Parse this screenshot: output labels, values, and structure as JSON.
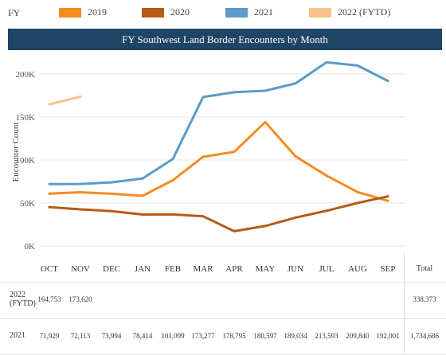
{
  "legend": {
    "label": "FY",
    "items": [
      {
        "name": "2019",
        "color": "#f58a21"
      },
      {
        "name": "2020",
        "color": "#b85a14"
      },
      {
        "name": "2021",
        "color": "#5b9bc8"
      },
      {
        "name": "2022 (FYTD)",
        "color": "#f7c38a"
      }
    ]
  },
  "chart_data": {
    "type": "line",
    "title": "FY Southwest Land Border Encounters by Month",
    "xlabel": "",
    "ylabel": "Encounter Count",
    "ylim": [
      0,
      230000
    ],
    "yticks": [
      0,
      50000,
      100000,
      150000,
      200000
    ],
    "ytick_labels": [
      "0K",
      "50K",
      "100K",
      "150K",
      "200K"
    ],
    "grid": "horizontal",
    "categories": [
      "OCT",
      "NOV",
      "DEC",
      "JAN",
      "FEB",
      "MAR",
      "APR",
      "MAY",
      "JUN",
      "JUL",
      "AUG",
      "SEP"
    ],
    "series": [
      {
        "name": "2019",
        "color": "#f58a21",
        "values": [
          60800,
          62500,
          60700,
          58300,
          76500,
          103700,
          109400,
          144100,
          104300,
          81800,
          62700,
          52500
        ]
      },
      {
        "name": "2020",
        "color": "#b85a14",
        "values": [
          45200,
          42600,
          40600,
          36600,
          36700,
          34500,
          17100,
          23200,
          33000,
          40900,
          50000,
          57700
        ]
      },
      {
        "name": "2021",
        "color": "#5b9bc8",
        "values": [
          71929,
          72113,
          73994,
          78414,
          101099,
          173277,
          178795,
          180597,
          189034,
          213593,
          209840,
          192001
        ]
      },
      {
        "name": "2022 (FYTD)",
        "color": "#f7c38a",
        "values": [
          164753,
          173620,
          null,
          null,
          null,
          null,
          null,
          null,
          null,
          null,
          null,
          null
        ]
      }
    ]
  },
  "table": {
    "total_header": "Total",
    "rows": [
      {
        "label": "2022 (FYTD)",
        "cells": [
          "164,753",
          "173,620",
          "",
          "",
          "",
          "",
          "",
          "",
          "",
          "",
          "",
          ""
        ],
        "total": "338,373"
      },
      {
        "label": "2021",
        "cells": [
          "71,929",
          "72,113",
          "73,994",
          "78,414",
          "101,099",
          "173,277",
          "178,795",
          "180,597",
          "189,034",
          "213,593",
          "209,840",
          "192,001"
        ],
        "total": "1,734,686"
      }
    ]
  }
}
